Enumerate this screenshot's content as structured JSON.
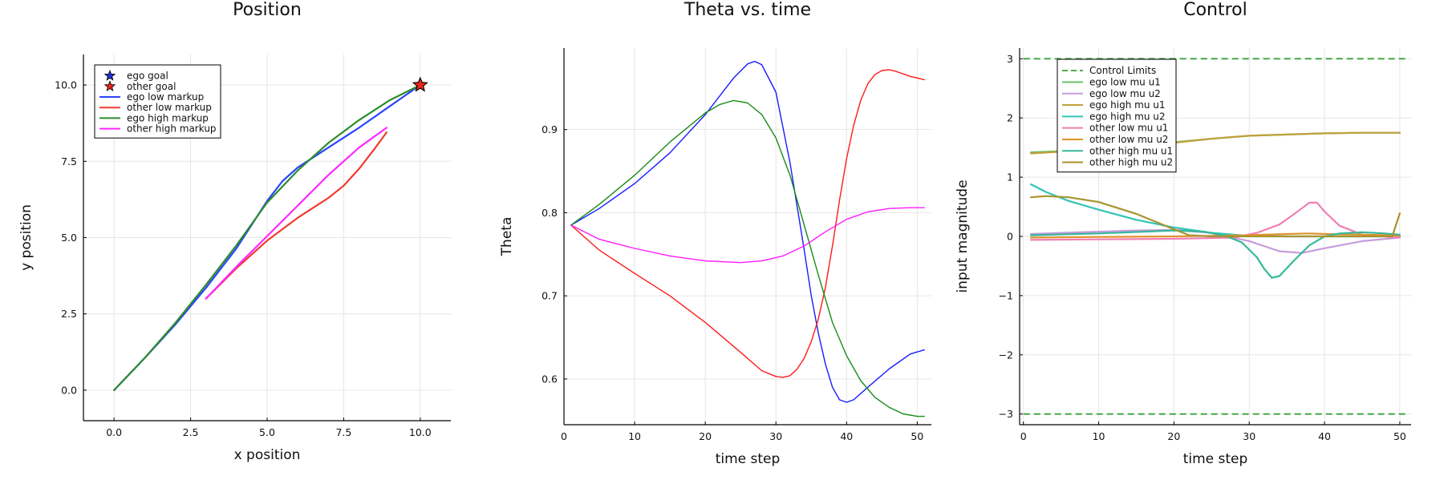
{
  "chart_data": [
    {
      "type": "line",
      "title": "Position",
      "xlabel": "x position",
      "ylabel": "y position",
      "xlim": [
        -1,
        11
      ],
      "ylim": [
        -1,
        11
      ],
      "xticks": [
        0,
        2.5,
        5,
        7.5,
        10
      ],
      "xtick_labels": [
        "0.0",
        "2.5",
        "5.0",
        "7.5",
        "10.0"
      ],
      "yticks": [
        0,
        2.5,
        5,
        7.5,
        10
      ],
      "ytick_labels": [
        "0.0",
        "2.5",
        "5.0",
        "7.5",
        "10.0"
      ],
      "grid": true,
      "legend": "top-left",
      "markers": [
        {
          "name": "ego goal",
          "x": 10.0,
          "y": 10.0,
          "color": "#1f2fd6",
          "shape": "star"
        },
        {
          "name": "other goal",
          "x": 10.0,
          "y": 10.0,
          "color": "#e8251c",
          "shape": "star"
        }
      ],
      "series": [
        {
          "name": "ego low markup",
          "color": "#2b44ff",
          "x": [
            0,
            1,
            2,
            3,
            4,
            5,
            5.5,
            6,
            7,
            8,
            9,
            10
          ],
          "y": [
            0,
            1.05,
            2.15,
            3.35,
            4.65,
            6.2,
            6.85,
            7.3,
            7.95,
            8.6,
            9.3,
            10
          ]
        },
        {
          "name": "other low markup",
          "color": "#f23a2f",
          "x": [
            3.0,
            4,
            5,
            6,
            7,
            7.5,
            8,
            8.5,
            8.9
          ],
          "y": [
            3.0,
            4.0,
            4.9,
            5.65,
            6.3,
            6.7,
            7.25,
            7.9,
            8.45
          ]
        },
        {
          "name": "ego high markup",
          "color": "#2e8b2e",
          "x": [
            0,
            1,
            2,
            3,
            4,
            5,
            6,
            7,
            8,
            9,
            10
          ],
          "y": [
            0,
            1.05,
            2.2,
            3.45,
            4.75,
            6.15,
            7.2,
            8.1,
            8.85,
            9.5,
            10
          ]
        },
        {
          "name": "other high markup",
          "color": "#ff27ff",
          "x": [
            3.0,
            4,
            5,
            6,
            7,
            8,
            8.9
          ],
          "y": [
            3.0,
            4.05,
            5.05,
            6.05,
            7.05,
            7.95,
            8.6
          ]
        }
      ]
    },
    {
      "type": "line",
      "title": "Theta vs. time",
      "xlabel": "time step",
      "ylabel": "Theta",
      "xlim": [
        0,
        52
      ],
      "ylim": [
        0.545,
        0.998
      ],
      "xticks": [
        0,
        10,
        20,
        30,
        40,
        50
      ],
      "xtick_labels": [
        "0",
        "10",
        "20",
        "30",
        "40",
        "50"
      ],
      "yticks": [
        0.6,
        0.7,
        0.8,
        0.9
      ],
      "ytick_labels": [
        "0.6",
        "0.7",
        "0.8",
        "0.9"
      ],
      "grid": true,
      "series": [
        {
          "color": "#1a1aff",
          "x": [
            1,
            5,
            10,
            15,
            20,
            24,
            26,
            27,
            28,
            30,
            32,
            34,
            35,
            36,
            37,
            38,
            39,
            40,
            41,
            43,
            46,
            49,
            51
          ],
          "y": [
            0.785,
            0.805,
            0.835,
            0.872,
            0.918,
            0.962,
            0.979,
            0.982,
            0.978,
            0.945,
            0.86,
            0.755,
            0.7,
            0.655,
            0.618,
            0.59,
            0.575,
            0.572,
            0.575,
            0.59,
            0.612,
            0.63,
            0.635
          ]
        },
        {
          "color": "#ff1a1a",
          "x": [
            1,
            5,
            10,
            15,
            20,
            25,
            28,
            30,
            31,
            32,
            33,
            34,
            35,
            36,
            37,
            38,
            39,
            40,
            41,
            42,
            43,
            44,
            45,
            46,
            47,
            48,
            49,
            51
          ],
          "y": [
            0.785,
            0.755,
            0.727,
            0.7,
            0.668,
            0.632,
            0.61,
            0.603,
            0.602,
            0.604,
            0.612,
            0.625,
            0.645,
            0.672,
            0.71,
            0.76,
            0.815,
            0.865,
            0.905,
            0.935,
            0.955,
            0.966,
            0.971,
            0.972,
            0.97,
            0.967,
            0.964,
            0.96
          ]
        },
        {
          "color": "#1a8c1a",
          "x": [
            1,
            5,
            10,
            15,
            20,
            22,
            24,
            26,
            28,
            30,
            32,
            34,
            36,
            38,
            40,
            42,
            44,
            46,
            48,
            50,
            51
          ],
          "y": [
            0.785,
            0.81,
            0.845,
            0.885,
            0.92,
            0.93,
            0.935,
            0.932,
            0.918,
            0.89,
            0.845,
            0.785,
            0.725,
            0.668,
            0.628,
            0.598,
            0.578,
            0.566,
            0.558,
            0.555,
            0.555
          ]
        },
        {
          "color": "#ff1aff",
          "x": [
            1,
            5,
            10,
            15,
            20,
            25,
            28,
            31,
            34,
            37,
            40,
            43,
            46,
            49,
            51
          ],
          "y": [
            0.785,
            0.768,
            0.757,
            0.748,
            0.742,
            0.74,
            0.742,
            0.748,
            0.76,
            0.777,
            0.792,
            0.801,
            0.805,
            0.806,
            0.806
          ]
        }
      ]
    },
    {
      "type": "line",
      "title": "Control",
      "xlabel": "time step",
      "ylabel": "input magnitude",
      "xlim": [
        -0.5,
        51.5
      ],
      "ylim": [
        -3.18,
        3.18
      ],
      "xticks": [
        0,
        10,
        20,
        30,
        40,
        50
      ],
      "xtick_labels": [
        "0",
        "10",
        "20",
        "30",
        "40",
        "50"
      ],
      "yticks": [
        -3,
        -2,
        -1,
        0,
        1,
        2,
        3
      ],
      "ytick_labels": [
        "−3",
        "−2",
        "−1",
        "0",
        "1",
        "2",
        "3"
      ],
      "grid": true,
      "legend": "top-left",
      "series": [
        {
          "name": "Control Limits",
          "color": "#3aa13a",
          "dashed": true,
          "x": [
            0,
            51
          ],
          "y": [
            3,
            3
          ],
          "y2": [
            -3,
            -3
          ]
        },
        {
          "name": "ego low mu u1",
          "color": "#66c166",
          "x": [
            1,
            5,
            10,
            15,
            20,
            25,
            30,
            35,
            40,
            45,
            50
          ],
          "y": [
            1.42,
            1.44,
            1.47,
            1.52,
            1.59,
            1.65,
            1.7,
            1.72,
            1.74,
            1.75,
            1.75
          ]
        },
        {
          "name": "ego low mu u2",
          "color": "#c79bdc",
          "x": [
            1,
            5,
            10,
            15,
            20,
            25,
            30,
            34,
            37,
            40,
            45,
            50
          ],
          "y": [
            0.04,
            0.06,
            0.08,
            0.1,
            0.11,
            0.06,
            -0.08,
            -0.25,
            -0.28,
            -0.2,
            -0.08,
            -0.02
          ]
        },
        {
          "name": "ego high mu u1",
          "color": "#c2a03c",
          "x": [
            1,
            5,
            10,
            15,
            20,
            25,
            30,
            35,
            40,
            45,
            50
          ],
          "y": [
            1.4,
            1.43,
            1.47,
            1.52,
            1.58,
            1.65,
            1.7,
            1.72,
            1.74,
            1.75,
            1.75
          ]
        },
        {
          "name": "ego high mu u2",
          "color": "#32c4b6",
          "x": [
            1,
            3,
            6,
            10,
            15,
            20,
            25,
            30,
            35,
            40,
            45,
            50
          ],
          "y": [
            0.88,
            0.75,
            0.6,
            0.45,
            0.28,
            0.15,
            0.06,
            0.01,
            0.0,
            0.0,
            0.0,
            0.0
          ]
        },
        {
          "name": "other low mu u1",
          "color": "#f07fb6",
          "x": [
            1,
            10,
            20,
            28,
            31,
            34,
            36,
            38,
            39,
            40,
            42,
            45,
            50
          ],
          "y": [
            -0.06,
            -0.05,
            -0.04,
            -0.02,
            0.06,
            0.2,
            0.38,
            0.57,
            0.57,
            0.42,
            0.18,
            0.03,
            -0.02
          ]
        },
        {
          "name": "other low mu u2",
          "color": "#e0922e",
          "x": [
            1,
            10,
            20,
            25,
            30,
            35,
            38,
            40,
            45,
            49,
            50
          ],
          "y": [
            -0.02,
            -0.01,
            0.0,
            0.01,
            0.02,
            0.04,
            0.05,
            0.04,
            0.03,
            0.02,
            0.01
          ]
        },
        {
          "name": "other high mu u1",
          "color": "#35b89a",
          "x": [
            1,
            10,
            20,
            24,
            27,
            29,
            31,
            32,
            33,
            34,
            36,
            38,
            40,
            42,
            45,
            48,
            50
          ],
          "y": [
            0.02,
            0.05,
            0.1,
            0.08,
            0.0,
            -0.1,
            -0.35,
            -0.55,
            -0.7,
            -0.67,
            -0.4,
            -0.15,
            0.0,
            0.05,
            0.07,
            0.05,
            0.03
          ]
        },
        {
          "name": "other high mu u2",
          "color": "#a8932e",
          "x": [
            1,
            3,
            6,
            10,
            15,
            20,
            22,
            25,
            30,
            35,
            40,
            45,
            49,
            50
          ],
          "y": [
            0.66,
            0.68,
            0.66,
            0.58,
            0.38,
            0.12,
            0.02,
            0.0,
            0.0,
            0.0,
            0.0,
            0.0,
            0.0,
            0.39
          ]
        }
      ]
    }
  ]
}
